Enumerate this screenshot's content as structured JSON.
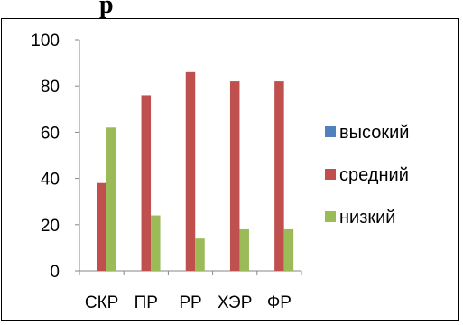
{
  "heading_fragment": "р",
  "chart_data": {
    "type": "bar",
    "categories": [
      "СКР",
      "ПР",
      "РР",
      "ХЭР",
      "ФР"
    ],
    "series": [
      {
        "name": "высокий",
        "values": [
          0,
          0,
          0,
          0,
          0
        ],
        "color": "#4F81BD"
      },
      {
        "name": "средний",
        "values": [
          38,
          76,
          86,
          82,
          82
        ],
        "color": "#C0504D"
      },
      {
        "name": "низкий",
        "values": [
          62,
          24,
          14,
          18,
          18
        ],
        "color": "#9BBB59"
      }
    ],
    "ylim": [
      0,
      100
    ],
    "yticks": [
      0,
      20,
      40,
      60,
      80,
      100
    ],
    "grid": false,
    "legend": "right"
  }
}
